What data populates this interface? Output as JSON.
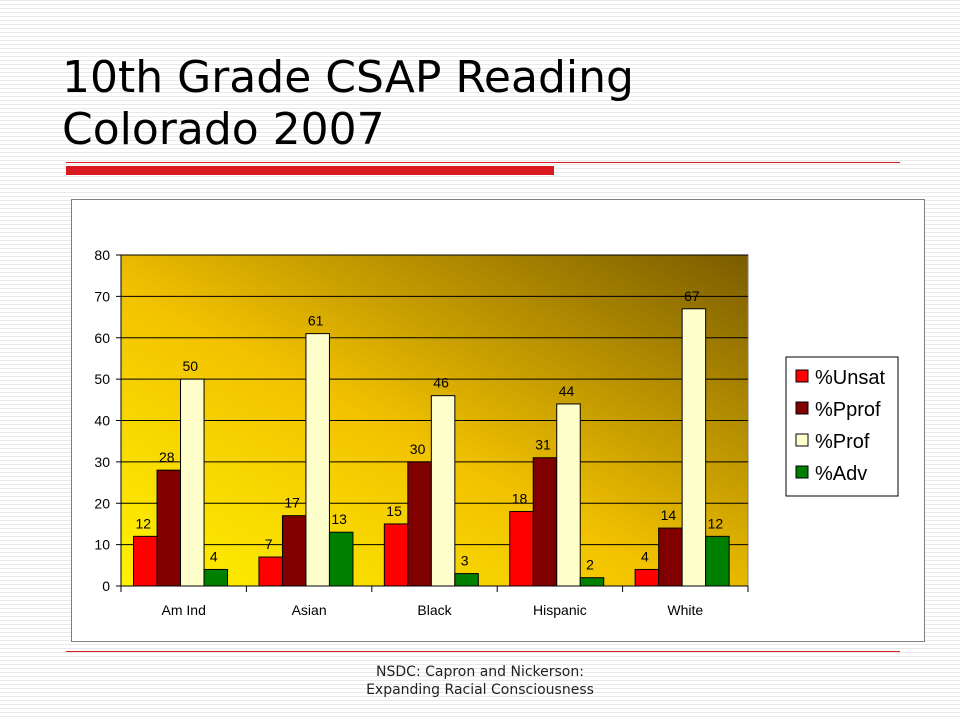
{
  "slide": {
    "title_line1": "10th Grade CSAP Reading",
    "title_line2": "Colorado 2007",
    "footer_line1": "NSDC: Capron and Nickerson:",
    "footer_line2": "Expanding Racial Consciousness"
  },
  "colors": {
    "title_bar": "#d9181f",
    "plot_gradient": [
      "#fff200",
      "#f2c200",
      "#7a5c00"
    ]
  },
  "chart_data": {
    "type": "bar",
    "categories": [
      "Am Ind",
      "Asian",
      "Black",
      "Hispanic",
      "White"
    ],
    "series": [
      {
        "name": "%Unsat",
        "color": "#ff0000",
        "values": [
          12,
          7,
          15,
          18,
          4
        ]
      },
      {
        "name": "%Pprof",
        "color": "#800000",
        "values": [
          28,
          17,
          30,
          31,
          14
        ]
      },
      {
        "name": "%Prof",
        "color": "#ffffcc",
        "values": [
          50,
          61,
          46,
          44,
          67
        ]
      },
      {
        "name": "%Adv",
        "color": "#008000",
        "values": [
          4,
          13,
          3,
          2,
          12
        ]
      }
    ],
    "yticks": [
      0,
      10,
      20,
      30,
      40,
      50,
      60,
      70,
      80
    ],
    "ylim": [
      0,
      80
    ],
    "grid": true,
    "legend": "right",
    "data_labels": true
  }
}
